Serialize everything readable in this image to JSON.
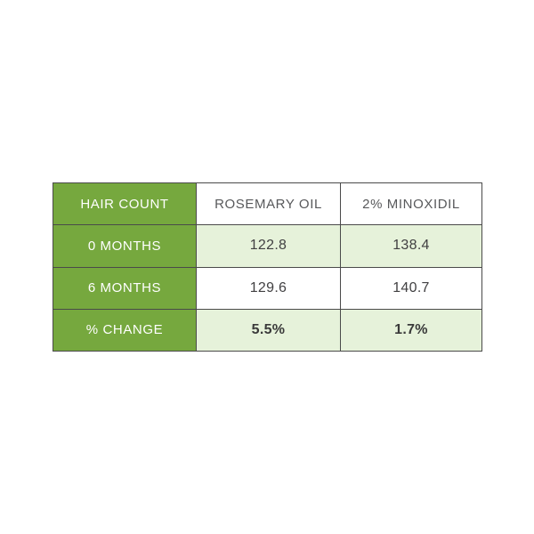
{
  "table": {
    "header": {
      "col0": "HAIR COUNT",
      "col1": "ROSEMARY OIL",
      "col2": "2% MINOXIDIL"
    },
    "rows": [
      {
        "label": "0 MONTHS",
        "rosemary": "122.8",
        "minoxidil": "138.4"
      },
      {
        "label": "6 MONTHS",
        "rosemary": "129.6",
        "minoxidil": "140.7"
      },
      {
        "label": "% CHANGE",
        "rosemary": "5.5%",
        "minoxidil": "1.7%"
      }
    ],
    "colors": {
      "green": "#76a83e",
      "light_green": "#e6f2da",
      "border": "#4a4a4a",
      "header_text": "#58595b",
      "value_text": "#414042",
      "label_text": "#ffffff",
      "background": "#ffffff"
    }
  },
  "chart_data": {
    "type": "table",
    "title": "",
    "columns": [
      "HAIR COUNT",
      "ROSEMARY OIL",
      "2% MINOXIDIL"
    ],
    "rows": [
      [
        "0 MONTHS",
        122.8,
        138.4
      ],
      [
        "6 MONTHS",
        129.6,
        140.7
      ],
      [
        "% CHANGE",
        "5.5%",
        "1.7%"
      ]
    ],
    "series": [
      {
        "name": "ROSEMARY OIL",
        "values": [
          122.8,
          129.6
        ],
        "percent_change": 5.5
      },
      {
        "name": "2% MINOXIDIL",
        "values": [
          138.4,
          140.7
        ],
        "percent_change": 1.7
      }
    ],
    "categories": [
      "0 MONTHS",
      "6 MONTHS"
    ]
  }
}
